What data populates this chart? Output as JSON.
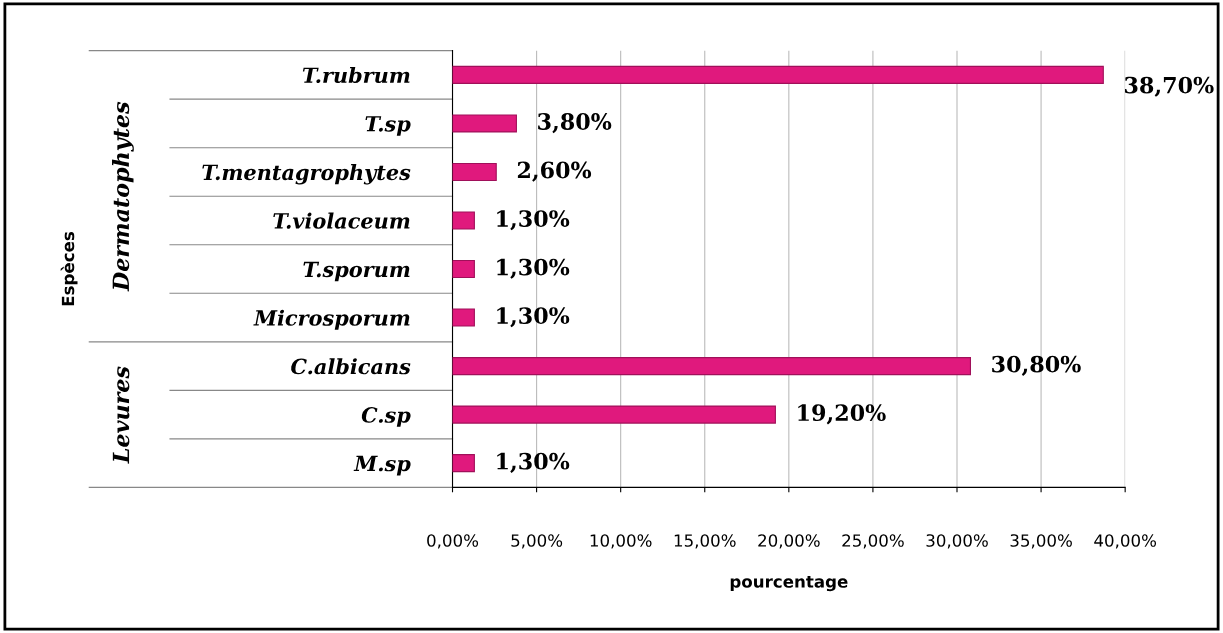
{
  "chart_data": {
    "type": "bar",
    "orientation": "horizontal",
    "xlabel": "pourcentage",
    "categories": [
      "T.rubrum",
      "T.sp",
      "T.mentagrophytes",
      "T.violaceum",
      "T.sporum",
      "Microsporum",
      "C.albicans",
      "C.sp",
      "M.sp"
    ],
    "values": [
      38.7,
      3.8,
      2.6,
      1.3,
      1.3,
      1.3,
      30.8,
      19.2,
      1.3
    ],
    "value_labels": [
      "38,70%",
      "3,80%",
      "2,60%",
      "1,30%",
      "1,30%",
      "1,30%",
      "30,80%",
      "19,20%",
      "1,30%"
    ],
    "color": "#e0197d",
    "xlim": [
      0,
      40
    ],
    "xticks": [
      {
        "value": 0,
        "label": "0,00%"
      },
      {
        "value": 5,
        "label": "5,00%"
      },
      {
        "value": 10,
        "label": "10,00%"
      },
      {
        "value": 15,
        "label": "15,00%"
      },
      {
        "value": 20,
        "label": "20,00%"
      },
      {
        "value": 25,
        "label": "25,00%"
      },
      {
        "value": 30,
        "label": "30,00%"
      },
      {
        "value": 35,
        "label": "35,00%"
      },
      {
        "value": 40,
        "label": "40,00%"
      }
    ],
    "grid": "x",
    "annotations": [
      "Dermatophytes",
      "Levures",
      "Espèces"
    ]
  }
}
